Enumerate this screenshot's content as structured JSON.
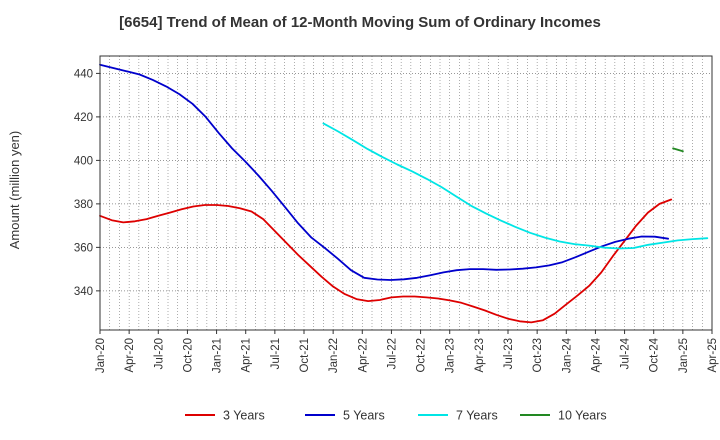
{
  "chart_data": {
    "type": "line",
    "title": "[6654]  Trend of Mean of 12-Month Moving Sum of Ordinary Incomes",
    "xlabel": "",
    "ylabel": "Amount (million yen)",
    "x_tick_labels": [
      "Jan-20",
      "Apr-20",
      "Jul-20",
      "Oct-20",
      "Jan-21",
      "Apr-21",
      "Jul-21",
      "Oct-21",
      "Jan-22",
      "Apr-22",
      "Jul-22",
      "Oct-22",
      "Jan-23",
      "Apr-23",
      "Jul-23",
      "Oct-23",
      "Jan-24",
      "Apr-24",
      "Jul-24",
      "Oct-24",
      "Jan-25",
      "Apr-25"
    ],
    "y_ticks": [
      340,
      360,
      380,
      400,
      420,
      440
    ],
    "ylim": [
      322,
      448
    ],
    "grid": true,
    "legend_position": "bottom",
    "series": [
      {
        "name": "3 Years",
        "color": "#dd0000",
        "points": [
          [
            0,
            374.5
          ],
          [
            1,
            372.5
          ],
          [
            2,
            371.5
          ],
          [
            3,
            372
          ],
          [
            4,
            373
          ],
          [
            5,
            374.5
          ],
          [
            6,
            376
          ],
          [
            7,
            377.5
          ],
          [
            8,
            378.8
          ],
          [
            9,
            379.5
          ],
          [
            10,
            379.5
          ],
          [
            11,
            379
          ],
          [
            12,
            378
          ],
          [
            13,
            376.5
          ],
          [
            14,
            373
          ],
          [
            15,
            367.5
          ],
          [
            16,
            362
          ],
          [
            17,
            356.5
          ],
          [
            18,
            351.5
          ],
          [
            19,
            346.5
          ],
          [
            20,
            342
          ],
          [
            21,
            338.5
          ],
          [
            22,
            336.2
          ],
          [
            23,
            335.3
          ],
          [
            24,
            335.8
          ],
          [
            25,
            337
          ],
          [
            26,
            337.4
          ],
          [
            27,
            337.4
          ],
          [
            28,
            337
          ],
          [
            29,
            336.5
          ],
          [
            30,
            335.6
          ],
          [
            31,
            334.5
          ],
          [
            32,
            332.8
          ],
          [
            33,
            331
          ],
          [
            34,
            329
          ],
          [
            35,
            327.2
          ],
          [
            36,
            326
          ],
          [
            37,
            325.5
          ],
          [
            38,
            326.5
          ],
          [
            39,
            329.5
          ],
          [
            40,
            333.8
          ],
          [
            41,
            338
          ],
          [
            42,
            342.5
          ],
          [
            43,
            348.5
          ],
          [
            44,
            356
          ],
          [
            45,
            363
          ],
          [
            46,
            370
          ],
          [
            47,
            376
          ],
          [
            48,
            380
          ],
          [
            49,
            382
          ]
        ]
      },
      {
        "name": "5 Years",
        "color": "#0000cc",
        "points": [
          [
            0,
            444
          ],
          [
            1,
            442.5
          ],
          [
            2,
            441
          ],
          [
            3,
            439.5
          ],
          [
            4,
            437
          ],
          [
            5,
            434
          ],
          [
            6,
            430.5
          ],
          [
            7,
            426
          ],
          [
            8,
            420
          ],
          [
            9,
            412.5
          ],
          [
            10,
            405.5
          ],
          [
            11,
            399.5
          ],
          [
            12,
            393
          ],
          [
            13,
            386
          ],
          [
            14,
            378.5
          ],
          [
            15,
            371
          ],
          [
            16,
            364.5
          ],
          [
            17,
            359.8
          ],
          [
            18,
            354.8
          ],
          [
            19,
            349.5
          ],
          [
            20,
            346
          ],
          [
            21,
            345.2
          ],
          [
            22,
            345
          ],
          [
            23,
            345.3
          ],
          [
            24,
            346
          ],
          [
            25,
            347.2
          ],
          [
            26,
            348.5
          ],
          [
            27,
            349.5
          ],
          [
            28,
            350
          ],
          [
            29,
            350
          ],
          [
            30,
            349.7
          ],
          [
            31,
            349.8
          ],
          [
            32,
            350.2
          ],
          [
            33,
            350.8
          ],
          [
            34,
            351.7
          ],
          [
            35,
            353.2
          ],
          [
            36,
            355.5
          ],
          [
            37,
            358
          ],
          [
            38,
            360.5
          ],
          [
            39,
            362.5
          ],
          [
            40,
            364
          ],
          [
            41,
            365
          ],
          [
            42,
            364.9
          ],
          [
            43,
            364
          ]
        ]
      },
      {
        "name": "7 Years",
        "color": "#00e5e5",
        "points": [
          [
            0,
            417
          ],
          [
            1,
            413.3
          ],
          [
            2,
            409.3
          ],
          [
            3,
            405.2
          ],
          [
            4,
            401.5
          ],
          [
            5,
            398.1
          ],
          [
            6,
            395
          ],
          [
            7,
            391.5
          ],
          [
            8,
            387.7
          ],
          [
            9,
            383.4
          ],
          [
            10,
            379.1
          ],
          [
            11,
            375.6
          ],
          [
            12,
            372.4
          ],
          [
            13,
            369.4
          ],
          [
            14,
            366.7
          ],
          [
            15,
            364.5
          ],
          [
            16,
            362.7
          ],
          [
            17,
            361.5
          ],
          [
            18,
            360.8
          ],
          [
            19,
            359.9
          ],
          [
            20,
            359.5
          ],
          [
            21,
            359.7
          ],
          [
            22,
            361.2
          ],
          [
            23,
            362.2
          ],
          [
            24,
            363.2
          ],
          [
            25,
            363.8
          ],
          [
            26,
            364.2
          ]
        ]
      },
      {
        "name": "10 Years",
        "color": "#228822",
        "points": [
          [
            0,
            405.5
          ],
          [
            1,
            404.2
          ]
        ]
      }
    ],
    "series_start_month": [
      0,
      0,
      23,
      59
    ],
    "months_per_point": [
      1.2,
      1.36,
      1.52,
      1.0
    ]
  }
}
